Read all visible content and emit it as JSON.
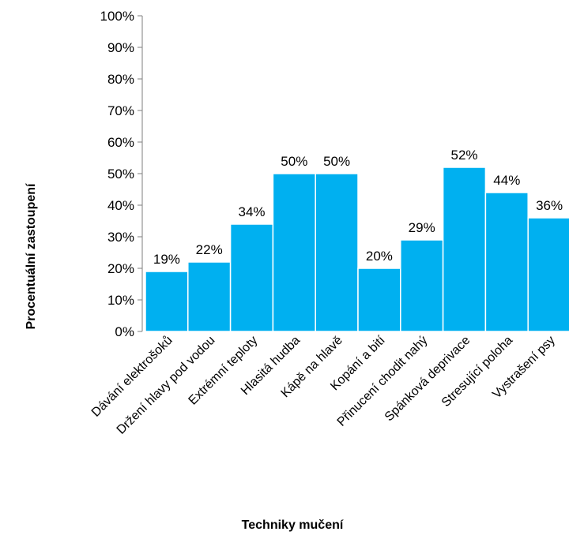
{
  "chart_data": {
    "type": "bar",
    "categories": [
      "Dávání elektrošoků",
      "Držení hlavy pod vodou",
      "Extrémní teploty",
      "Hlasitá hudba",
      "Kápě na hlavě",
      "Kopání a bití",
      "Přinucení chodit nahý",
      "Spánková deprivace",
      "Stresující poloha",
      "Vystrašení psy"
    ],
    "values": [
      19,
      22,
      34,
      50,
      50,
      20,
      29,
      52,
      44,
      36
    ],
    "value_labels": [
      "19%",
      "22%",
      "34%",
      "50%",
      "50%",
      "20%",
      "29%",
      "52%",
      "44%",
      "36%"
    ],
    "ylim": [
      0,
      100
    ],
    "y_ticks": [
      0,
      10,
      20,
      30,
      40,
      50,
      60,
      70,
      80,
      90,
      100
    ],
    "y_tick_labels": [
      "0%",
      "10%",
      "20%",
      "30%",
      "40%",
      "50%",
      "60%",
      "70%",
      "80%",
      "90%",
      "100%"
    ],
    "xlabel": "Techniky mučení",
    "ylabel": "Procentuální zastoupení",
    "bar_color": "#00b0f0",
    "grid": false,
    "legend": "none"
  }
}
